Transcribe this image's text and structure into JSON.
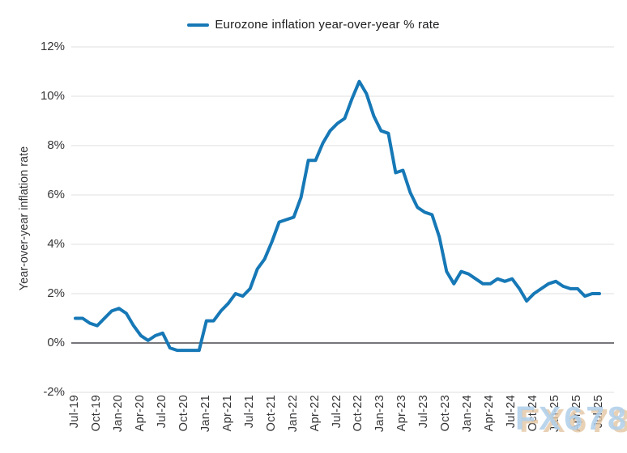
{
  "legend": {
    "label": "Eurozone inflation year-over-year % rate"
  },
  "watermark": "FX678",
  "colors": {
    "line": "#1678b6",
    "grid": "#e5e5e8",
    "zero_line": "#76767b",
    "tick_text": "#353538",
    "watermark_fill": "#b1cfe9",
    "watermark_shadow": "#e4c5a2"
  },
  "chart_data": {
    "type": "line",
    "title": "",
    "legend_entries": [
      "Eurozone inflation year-over-year % rate"
    ],
    "legend_position": "top-center",
    "xlabel": "",
    "ylabel": "Year-over-year inflation rate",
    "ylim": [
      -2,
      12
    ],
    "yticks": [
      -2,
      0,
      2,
      4,
      6,
      8,
      10,
      12
    ],
    "y_tick_suffix": "%",
    "grid": "horizontal-only",
    "x_tick_every": 3,
    "x": [
      "Jul-19",
      "Aug-19",
      "Sep-19",
      "Oct-19",
      "Nov-19",
      "Dec-19",
      "Jan-20",
      "Feb-20",
      "Mar-20",
      "Apr-20",
      "May-20",
      "Jun-20",
      "Jul-20",
      "Aug-20",
      "Sep-20",
      "Oct-20",
      "Nov-20",
      "Dec-20",
      "Jan-21",
      "Feb-21",
      "Mar-21",
      "Apr-21",
      "May-21",
      "Jun-21",
      "Jul-21",
      "Aug-21",
      "Sep-21",
      "Oct-21",
      "Nov-21",
      "Dec-21",
      "Jan-22",
      "Feb-22",
      "Mar-22",
      "Apr-22",
      "May-22",
      "Jun-22",
      "Jul-22",
      "Aug-22",
      "Sep-22",
      "Oct-22",
      "Nov-22",
      "Dec-22",
      "Jan-23",
      "Feb-23",
      "Mar-23",
      "Apr-23",
      "May-23",
      "Jun-23",
      "Jul-23",
      "Aug-23",
      "Sep-23",
      "Oct-23",
      "Nov-23",
      "Dec-23",
      "Jan-24",
      "Feb-24",
      "Mar-24",
      "Apr-24",
      "May-24",
      "Jun-24",
      "Jul-24",
      "Aug-24",
      "Sep-24",
      "Oct-24",
      "Nov-24",
      "Dec-24",
      "Jan-25",
      "Feb-25",
      "Mar-25",
      "Apr-25",
      "May-25",
      "Jun-25",
      "Jul-25"
    ],
    "series": [
      {
        "name": "Eurozone inflation year-over-year % rate",
        "color": "#1678b6",
        "values": [
          1.0,
          1.0,
          0.8,
          0.7,
          1.0,
          1.3,
          1.4,
          1.2,
          0.7,
          0.3,
          0.1,
          0.3,
          0.4,
          -0.2,
          -0.3,
          -0.3,
          -0.3,
          -0.3,
          0.9,
          0.9,
          1.3,
          1.6,
          2.0,
          1.9,
          2.2,
          3.0,
          3.4,
          4.1,
          4.9,
          5.0,
          5.1,
          5.9,
          7.4,
          7.4,
          8.1,
          8.6,
          8.9,
          9.1,
          9.9,
          10.6,
          10.1,
          9.2,
          8.6,
          8.5,
          6.9,
          7.0,
          6.1,
          5.5,
          5.3,
          5.2,
          4.3,
          2.9,
          2.4,
          2.9,
          2.8,
          2.6,
          2.4,
          2.4,
          2.6,
          2.5,
          2.6,
          2.2,
          1.7,
          2.0,
          2.2,
          2.4,
          2.5,
          2.3,
          2.2,
          2.2,
          1.9,
          2.0,
          2.0
        ]
      }
    ]
  }
}
